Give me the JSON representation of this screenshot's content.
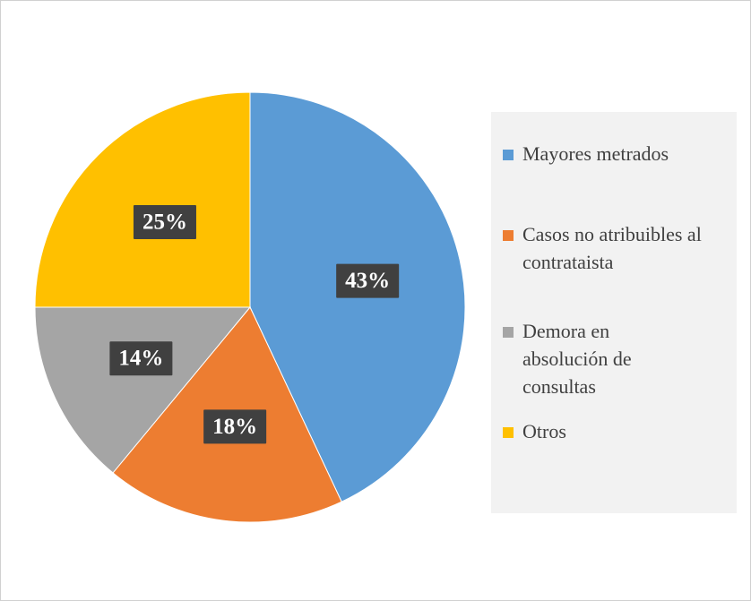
{
  "chart_data": {
    "type": "pie",
    "categories": [
      "Mayores metrados",
      "Casos no atribuibles al contrataista",
      "Demora en absolución de consultas",
      "Otros"
    ],
    "values": [
      43,
      18,
      14,
      25
    ],
    "value_labels": [
      "43%",
      "18%",
      "14%",
      "25%"
    ],
    "colors": [
      "#5b9bd5",
      "#ed7d31",
      "#a5a5a5",
      "#ffc000"
    ],
    "legend": "right"
  }
}
